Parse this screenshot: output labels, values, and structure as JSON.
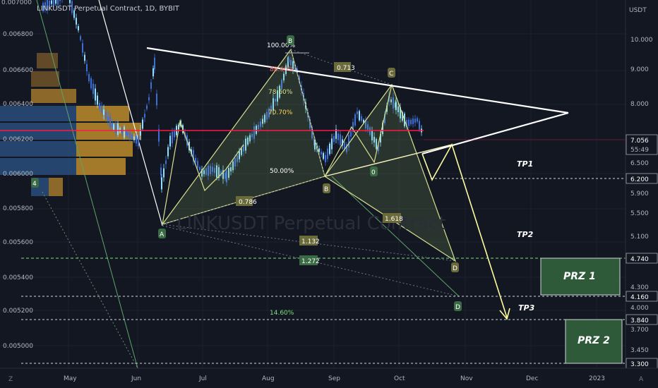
{
  "header": {
    "title": "LINKUSDT Perpetual Contract, 1D, BYBIT"
  },
  "watermark": "LINKUSDT Perpetual Contract",
  "left_axis": {
    "labels": [
      "0.007000",
      "0.006800",
      "0.006600",
      "0.006400",
      "0.006200",
      "0.006000",
      "0.005800",
      "0.005600",
      "0.005400",
      "0.005200",
      "0.005000"
    ]
  },
  "right_axis": {
    "unit": "USDT",
    "labels": [
      "10.000",
      "9.000",
      "8.000",
      "7.000",
      "6.500",
      "5.900",
      "5.500",
      "5.100",
      "4.300",
      "4.000",
      "3.700",
      "3.450"
    ],
    "badges": [
      {
        "price": "7.056",
        "time": "55:49",
        "color": "#131722",
        "text_color": "#ffffff"
      },
      {
        "price": "6.200",
        "color": "#131722",
        "text_color": "#ffffff"
      },
      {
        "price": "4.740",
        "color": "#131722",
        "text_color": "#ffffff"
      },
      {
        "price": "4.160",
        "color": "#131722",
        "text_color": "#ffffff"
      },
      {
        "price": "3.840",
        "color": "#131722",
        "text_color": "#ffffff"
      },
      {
        "price": "3.300",
        "color": "#131722",
        "text_color": "#ffffff"
      }
    ]
  },
  "time_axis": {
    "labels": [
      "May",
      "Jun",
      "Jul",
      "Aug",
      "Sep",
      "Oct",
      "Nov",
      "Dec",
      "2023"
    ]
  },
  "corners": {
    "left": "Z",
    "right": "A"
  },
  "annotations": {
    "fib_100": "100.00%",
    "fib_886": "88.60%",
    "fib_786": "78.60%",
    "fib_707": "70.70%",
    "fib_50": "50.00%",
    "fib_1460": "14.60%",
    "ratio_0713": "0.713",
    "ratio_0786": "0.786",
    "ratio_1618": "1.618",
    "ratio_1132": "1.132",
    "ratio_1272": "1.272",
    "point_A": "A",
    "point_B_top": "B",
    "point_B_low": "B",
    "point_C": "C",
    "point_D1": "D",
    "point_D2": "D",
    "point_0": "0",
    "point_4": "4",
    "tp1": "TP1",
    "tp2": "TP2",
    "tp3": "TP3",
    "prz1": "PRZ 1",
    "prz2": "PRZ 2"
  },
  "colors": {
    "background": "#131722",
    "bull": "#8fe0ff",
    "bear": "#3d6fd6",
    "resistance": "#ff1744",
    "pattern_fill": "#8fbf6a",
    "prz_box": "#2e5a3a",
    "arrow": "#fffd9e"
  }
}
